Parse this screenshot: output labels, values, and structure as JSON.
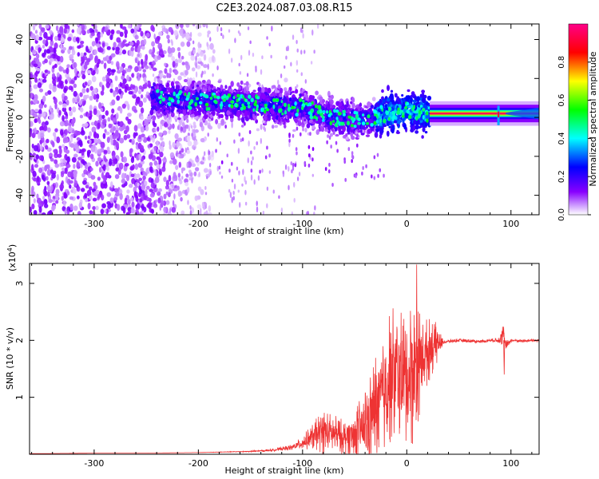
{
  "title": "C2E3.2024.087.03.08.R15",
  "chart_data": [
    {
      "type": "heatmap",
      "xlabel": "Height of straight line (km)",
      "ylabel": "Frequency (Hz)",
      "xlim": [
        -362,
        127
      ],
      "ylim": [
        -50,
        48
      ],
      "xticks": [
        -300,
        -200,
        -100,
        0,
        100
      ],
      "xtick_labels": [
        "-300",
        "-200",
        "-100",
        "0",
        "100"
      ],
      "yticks": [
        -40,
        -20,
        0,
        20,
        40
      ],
      "ytick_labels": [
        "-40",
        "-20",
        "0",
        "20",
        "40"
      ],
      "colorbar": {
        "label": "Normalized spectral amplitude",
        "range": [
          0.0,
          1.0
        ],
        "ticks": [
          0.0,
          0.2,
          0.4,
          0.6,
          0.8
        ],
        "tick_labels": [
          "0.0",
          "0.2",
          "0.4",
          "0.6",
          "0.8"
        ],
        "colormap": [
          "#ffffff",
          "#8800ff",
          "#0000ff",
          "#00ffff",
          "#00ff00",
          "#ffff00",
          "#ff0000",
          "#ff00aa"
        ]
      },
      "noise_floor_end_x": -245,
      "band_centerline": [
        {
          "x": -245,
          "y": 10
        },
        {
          "x": -150,
          "y": 7
        },
        {
          "x": -100,
          "y": 5
        },
        {
          "x": -70,
          "y": 0
        },
        {
          "x": -40,
          "y": -1
        },
        {
          "x": -20,
          "y": 2
        },
        {
          "x": 0,
          "y": 4
        },
        {
          "x": 22,
          "y": 2
        },
        {
          "x": 127,
          "y": 2
        }
      ],
      "steady_line": {
        "x_start": 22,
        "x_end": 127,
        "y": 2,
        "amplitude": 0.95
      },
      "spike_x": 88
    },
    {
      "type": "line",
      "xlabel": "Height of straight line (km)",
      "ylabel": "SNR (10 * v/v)",
      "y_multiplier_label": "(x10",
      "y_multiplier_exp": "4",
      "y_multiplier_close": ")",
      "xlim": [
        -362,
        127
      ],
      "ylim": [
        0,
        3.35
      ],
      "xticks": [
        -300,
        -200,
        -100,
        0,
        100
      ],
      "xtick_labels": [
        "-300",
        "-200",
        "-100",
        "0",
        "100"
      ],
      "yticks": [
        1,
        2,
        3
      ],
      "ytick_labels": [
        "1",
        "2",
        "3"
      ],
      "color": "#ee3333",
      "series": [
        {
          "x": [
            -362,
            -300,
            -250,
            -200,
            -150,
            -130,
            -110,
            -100,
            -90,
            -80,
            -70,
            -60,
            -50,
            -40,
            -30,
            -20,
            -15,
            -10,
            -5,
            0,
            5,
            10,
            15,
            20,
            25,
            30,
            35,
            40,
            50,
            60,
            70,
            80,
            88,
            92,
            95,
            100,
            110,
            127
          ],
          "y": [
            0.01,
            0.02,
            0.02,
            0.03,
            0.05,
            0.07,
            0.12,
            0.2,
            0.3,
            0.4,
            0.35,
            0.3,
            0.35,
            0.5,
            0.8,
            1.2,
            1.5,
            1.4,
            1.35,
            1.3,
            1.4,
            1.55,
            1.7,
            1.8,
            1.9,
            1.95,
            1.97,
            1.98,
            2.0,
            1.99,
            1.98,
            2.0,
            2.0,
            2.15,
            1.9,
            2.0,
            1.99,
            2.0
          ],
          "noise_amplitude": [
            0.0,
            0.0,
            0.0,
            0.0,
            0.01,
            0.02,
            0.05,
            0.12,
            0.25,
            0.4,
            0.35,
            0.3,
            0.45,
            0.7,
            1.0,
            1.2,
            1.3,
            1.2,
            1.2,
            1.3,
            1.3,
            1.1,
            0.7,
            0.6,
            0.5,
            0.3,
            0.04,
            0.03,
            0.03,
            0.03,
            0.03,
            0.03,
            0.05,
            0.25,
            0.1,
            0.03,
            0.03,
            0.03
          ]
        }
      ]
    }
  ]
}
